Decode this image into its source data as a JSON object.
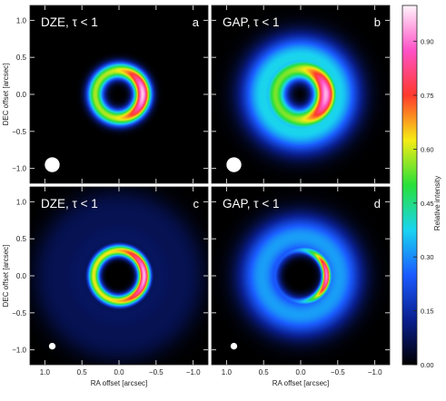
{
  "chart_data": {
    "type": "heatmap",
    "x_axis": {
      "label": "RA offset [arcsec]",
      "ticks": [
        1.0,
        0.5,
        0.0,
        -0.5,
        -1.0
      ],
      "tick_labels": [
        "1.0",
        "0.5",
        "0.0",
        "−0.5",
        "−1.0"
      ],
      "range": [
        1.2,
        -1.2
      ],
      "reversed": true
    },
    "y_axis": {
      "label": "DEC offset [arcsec]",
      "ticks": [
        -1.0,
        -0.5,
        0.0,
        0.5,
        1.0
      ],
      "tick_labels": [
        "−1.0",
        "−0.5",
        "0.0",
        "0.5",
        "1.0"
      ],
      "range": [
        -1.2,
        1.2
      ]
    },
    "colorbar": {
      "label": "Relative intensity",
      "range": [
        0,
        1
      ],
      "ticks": [
        0.0,
        0.15,
        0.3,
        0.45,
        0.6,
        0.75,
        0.9
      ],
      "tick_labels": [
        "0.00",
        "0.15",
        "0.30",
        "0.45",
        "0.60",
        "0.75",
        "0.90"
      ],
      "colormap": [
        "#000000",
        "#0a1f8f",
        "#1a5bff",
        "#19d4f0",
        "#29e03a",
        "#f6ec15",
        "#ff3a2c",
        "#ff52c7",
        "#fff4fb"
      ]
    },
    "panels": [
      {
        "id": "a",
        "title": "DZE,  τ < 1",
        "ring_radius": 0.32,
        "ring_width": 0.11,
        "peak_offset_x": -0.2,
        "peak_intensity": 0.97,
        "base_intensity": 0.58,
        "halo_intensity": 0.0,
        "beam_diameter": 0.2,
        "beam_position": [
          0.9,
          -0.95
        ]
      },
      {
        "id": "b",
        "title": "GAP,  τ < 1",
        "ring_radius": 0.34,
        "ring_width": 0.15,
        "peak_offset_x": -0.25,
        "peak_intensity": 0.95,
        "base_intensity": 0.55,
        "halo_intensity": 0.38,
        "beam_diameter": 0.2,
        "beam_position": [
          0.9,
          -0.95
        ]
      },
      {
        "id": "c",
        "title": "DZE,  τ < 1",
        "ring_radius": 0.34,
        "ring_width": 0.08,
        "peak_offset_x": -0.12,
        "peak_intensity": 0.96,
        "base_intensity": 0.62,
        "halo_intensity": 0.08,
        "beam_diameter": 0.09,
        "beam_position": [
          0.9,
          -0.95
        ]
      },
      {
        "id": "d",
        "title": "GAP,  τ < 1",
        "ring_radius": 0.35,
        "ring_width": 0.06,
        "peak_offset_x": -0.32,
        "peak_intensity": 0.92,
        "base_intensity": 0.25,
        "halo_intensity": 0.32,
        "beam_diameter": 0.09,
        "beam_position": [
          0.9,
          -0.95
        ]
      }
    ]
  }
}
